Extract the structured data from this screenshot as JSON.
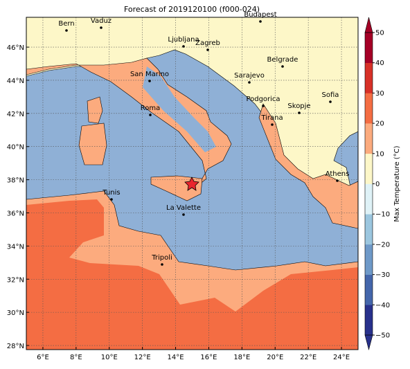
{
  "map": {
    "title": "Forecast of 2019120100 (f000-024)",
    "lon_range": [
      5,
      25
    ],
    "lat_range": [
      27.75,
      47.8
    ],
    "lon_ticks": [
      {
        "value": 6,
        "label": "6°E"
      },
      {
        "value": 8,
        "label": "8°E"
      },
      {
        "value": 10,
        "label": "10°E"
      },
      {
        "value": 12,
        "label": "12°E"
      },
      {
        "value": 14,
        "label": "14°E"
      },
      {
        "value": 16,
        "label": "16°E"
      },
      {
        "value": 18,
        "label": "18°E"
      },
      {
        "value": 20,
        "label": "20°E"
      },
      {
        "value": 22,
        "label": "22°E"
      },
      {
        "value": 24,
        "label": "24°E"
      }
    ],
    "lat_ticks": [
      {
        "value": 28,
        "label": "28°N"
      },
      {
        "value": 30,
        "label": "30°N"
      },
      {
        "value": 32,
        "label": "32°N"
      },
      {
        "value": 34,
        "label": "34°N"
      },
      {
        "value": 36,
        "label": "36°N"
      },
      {
        "value": 38,
        "label": "38°N"
      },
      {
        "value": 40,
        "label": "40°N"
      },
      {
        "value": 42,
        "label": "42°N"
      },
      {
        "value": 44,
        "label": "44°N"
      },
      {
        "value": 46,
        "label": "46°N"
      }
    ],
    "grid": true,
    "cities": [
      "Bern",
      "Vaduz",
      "Budapest",
      "Ljubljana",
      "Zagreb",
      "Belgrade",
      "Sarajevo",
      "San Marino",
      "Sofia",
      "Podgorica",
      "Skopje",
      "Roma",
      "Tirana",
      "Athens",
      "Tunis",
      "La Valette",
      "Tripoli"
    ],
    "colorbar": {
      "label": "Max Temperature (°C)",
      "range": [
        -50,
        50
      ],
      "ticks": [
        {
          "value": -50,
          "label": "−50"
        },
        {
          "value": -40,
          "label": "−40"
        },
        {
          "value": -30,
          "label": "−30"
        },
        {
          "value": -20,
          "label": "−20"
        },
        {
          "value": -10,
          "label": "−10"
        },
        0,
        10,
        20,
        30,
        40,
        50
      ],
      "colors": [
        "#28318c",
        "#4466ab",
        "#6e99c8",
        "#9bc6df",
        "#dff2f7",
        "#fdf7c8",
        "#fcab7e",
        "#f46d43",
        "#d73027",
        "#a50026"
      ]
    }
  }
}
